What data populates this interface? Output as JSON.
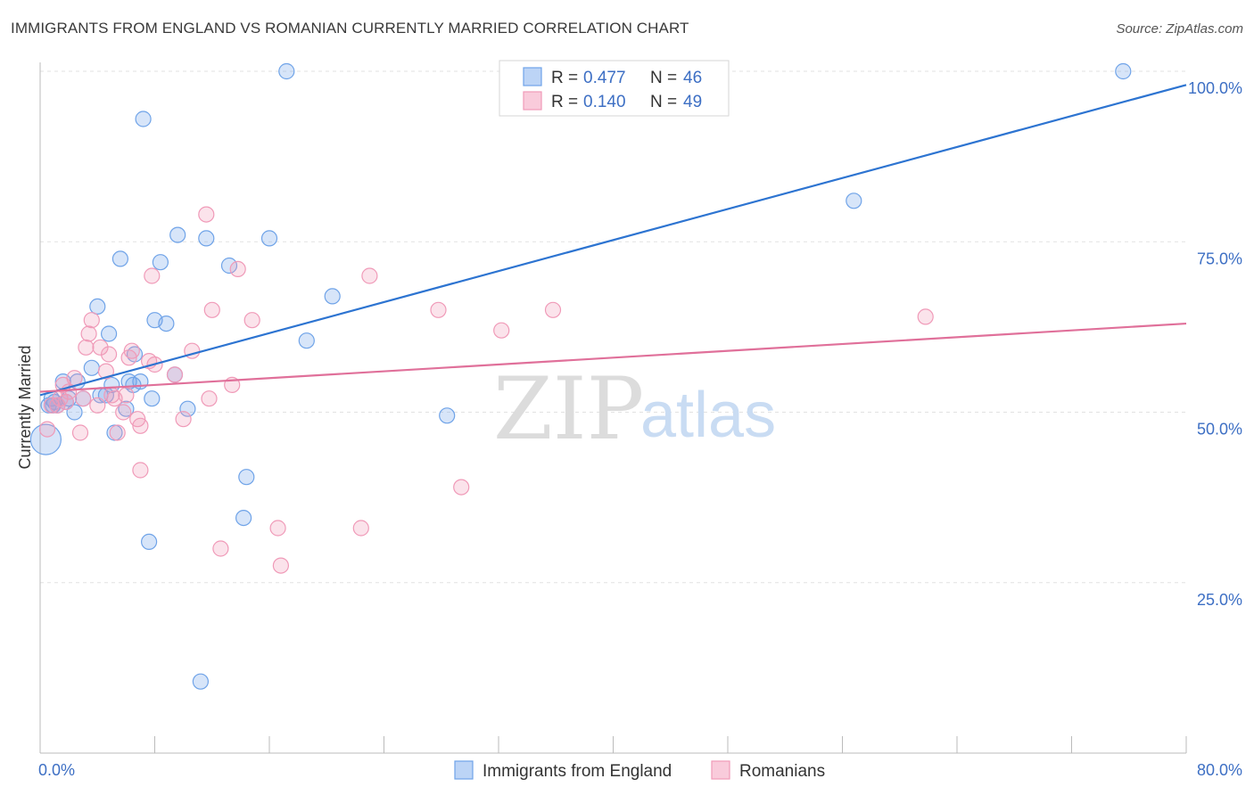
{
  "header": {
    "title": "IMMIGRANTS FROM ENGLAND VS ROMANIAN CURRENTLY MARRIED CORRELATION CHART",
    "source": "Source: ZipAtlas.com"
  },
  "watermark": {
    "zip": "ZIP",
    "atlas": "atlas"
  },
  "legend": {
    "rows": [
      {
        "r_label": "R = ",
        "r_value": "0.477",
        "n_label": "N = ",
        "n_value": "46",
        "color": "#6fa3e8"
      },
      {
        "r_label": "R = ",
        "r_value": "0.140",
        "n_label": "N = ",
        "n_value": "49",
        "color": "#f09ab8"
      }
    ]
  },
  "chart_data": {
    "type": "scatter",
    "title": "IMMIGRANTS FROM ENGLAND VS ROMANIAN CURRENTLY MARRIED CORRELATION CHART",
    "xlabel": "",
    "ylabel": "Currently Married",
    "xlim": [
      0,
      80
    ],
    "ylim": [
      0,
      102
    ],
    "x_tick_labels": [
      {
        "value": 0,
        "label": "0.0%"
      },
      {
        "value": 80,
        "label": "80.0%"
      }
    ],
    "y_tick_labels": [
      {
        "value": 25,
        "label": "25.0%"
      },
      {
        "value": 50,
        "label": "50.0%"
      },
      {
        "value": 75,
        "label": "75.0%"
      },
      {
        "value": 100,
        "label": "100.0%"
      }
    ],
    "grid": true,
    "legend_position": "bottom-center",
    "series": [
      {
        "name": "Immigrants from England",
        "color": "#6fa3e8",
        "trend": {
          "x0": 0,
          "y0": 52.5,
          "x1": 80,
          "y1": 98
        },
        "points": [
          [
            0.4,
            46
          ],
          [
            0.6,
            51
          ],
          [
            0.8,
            52
          ],
          [
            1.0,
            51.5
          ],
          [
            1.2,
            51
          ],
          [
            1.6,
            54.5
          ],
          [
            1.8,
            51.5
          ],
          [
            2.0,
            52
          ],
          [
            2.4,
            50
          ],
          [
            2.6,
            54.5
          ],
          [
            3.0,
            52
          ],
          [
            3.6,
            56.5
          ],
          [
            4.0,
            65.5
          ],
          [
            4.2,
            52.5
          ],
          [
            4.6,
            52.5
          ],
          [
            4.8,
            61.5
          ],
          [
            5.0,
            54
          ],
          [
            5.2,
            47
          ],
          [
            5.6,
            72.5
          ],
          [
            6.0,
            50.5
          ],
          [
            6.2,
            54.5
          ],
          [
            6.6,
            58.5
          ],
          [
            7.0,
            54.5
          ],
          [
            7.2,
            93
          ],
          [
            7.6,
            31
          ],
          [
            7.8,
            52
          ],
          [
            8.0,
            63.5
          ],
          [
            8.4,
            72
          ],
          [
            8.8,
            63
          ],
          [
            9.4,
            55.5
          ],
          [
            9.6,
            76
          ],
          [
            10.3,
            50.5
          ],
          [
            11.2,
            10.5
          ],
          [
            11.6,
            75.5
          ],
          [
            13.2,
            71.5
          ],
          [
            14.4,
            40.5
          ],
          [
            14.2,
            34.5
          ],
          [
            16.0,
            75.5
          ],
          [
            17.2,
            100
          ],
          [
            18.6,
            60.5
          ],
          [
            20.4,
            67
          ],
          [
            28.4,
            49.5
          ],
          [
            56.8,
            81
          ],
          [
            75.6,
            100
          ],
          [
            0.9,
            51
          ],
          [
            6.5,
            54
          ]
        ]
      },
      {
        "name": "Romanians",
        "color": "#f09ab8",
        "trend": {
          "x0": 0,
          "y0": 53,
          "x1": 80,
          "y1": 63
        },
        "points": [
          [
            0.5,
            47.5
          ],
          [
            0.8,
            51
          ],
          [
            1.2,
            51
          ],
          [
            1.6,
            54
          ],
          [
            1.8,
            51.5
          ],
          [
            2.0,
            53
          ],
          [
            2.4,
            55
          ],
          [
            2.8,
            47
          ],
          [
            3.2,
            59.5
          ],
          [
            3.4,
            61.5
          ],
          [
            3.6,
            63.5
          ],
          [
            4.0,
            51
          ],
          [
            4.2,
            59.5
          ],
          [
            4.6,
            56
          ],
          [
            4.8,
            58.5
          ],
          [
            5.0,
            52.5
          ],
          [
            5.4,
            47
          ],
          [
            5.8,
            50
          ],
          [
            6.0,
            52.5
          ],
          [
            6.2,
            58
          ],
          [
            6.4,
            59
          ],
          [
            6.8,
            49
          ],
          [
            7.0,
            48
          ],
          [
            7.0,
            41.5
          ],
          [
            7.6,
            57.5
          ],
          [
            7.8,
            70
          ],
          [
            8.0,
            57
          ],
          [
            9.4,
            55.5
          ],
          [
            10.0,
            49
          ],
          [
            10.6,
            59
          ],
          [
            11.6,
            79
          ],
          [
            11.8,
            52
          ],
          [
            12.0,
            65
          ],
          [
            12.6,
            30
          ],
          [
            13.8,
            71
          ],
          [
            13.4,
            54
          ],
          [
            14.8,
            63.5
          ],
          [
            16.6,
            33
          ],
          [
            16.8,
            27.5
          ],
          [
            22.4,
            33
          ],
          [
            23.0,
            70
          ],
          [
            27.8,
            65
          ],
          [
            29.4,
            39
          ],
          [
            32.2,
            62
          ],
          [
            35.8,
            65
          ],
          [
            61.8,
            64
          ],
          [
            1.4,
            52
          ],
          [
            3.0,
            52
          ],
          [
            5.2,
            52
          ]
        ]
      }
    ]
  }
}
